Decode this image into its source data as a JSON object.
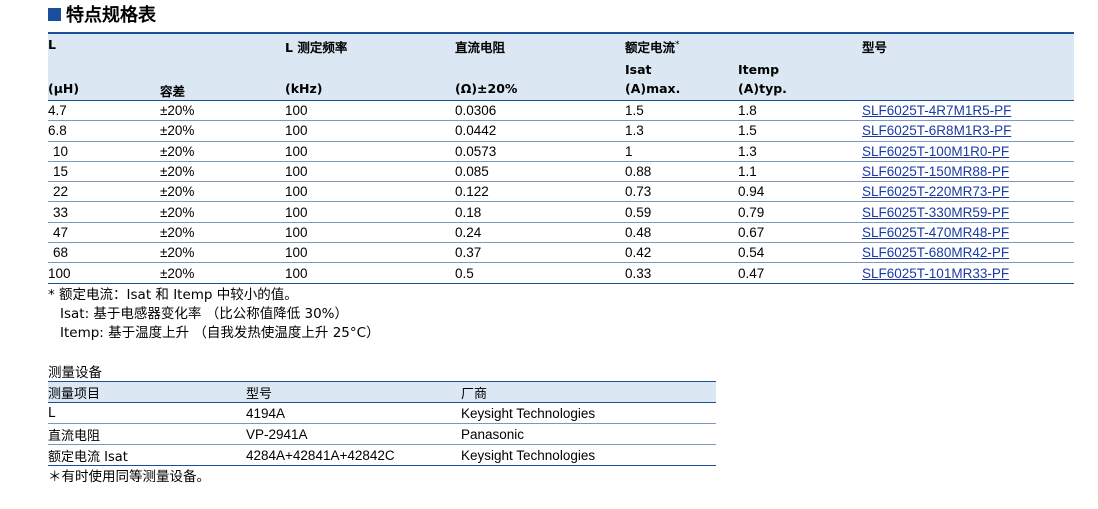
{
  "section_title": "特点规格表",
  "spec_table": {
    "header": {
      "l_top": "L",
      "l_unit": "(μH)",
      "tolerance": "容差",
      "freq": "L 测定频率",
      "freq_unit": "(kHz)",
      "dcr": "直流电阻",
      "dcr_unit": "(Ω)±20%",
      "rated_current": "额定电流",
      "rated_mark": "*",
      "isat": "Isat",
      "isat_unit": "(A)max.",
      "itemp": "Itemp",
      "itemp_unit": "(A)typ.",
      "part_no": "型号"
    },
    "rows": [
      {
        "l": "4.7",
        "tol": "±20%",
        "freq": "100",
        "dcr": "0.0306",
        "isat": "1.5",
        "itemp": "1.8",
        "part": "SLF6025T-4R7M1R5-PF"
      },
      {
        "l": "6.8",
        "tol": "±20%",
        "freq": "100",
        "dcr": "0.0442",
        "isat": "1.3",
        "itemp": "1.5",
        "part": "SLF6025T-6R8M1R3-PF"
      },
      {
        "l": "10",
        "tol": "±20%",
        "freq": "100",
        "dcr": "0.0573",
        "isat": "1",
        "itemp": "1.3",
        "part": "SLF6025T-100M1R0-PF"
      },
      {
        "l": "15",
        "tol": "±20%",
        "freq": "100",
        "dcr": "0.085",
        "isat": "0.88",
        "itemp": "1.1",
        "part": "SLF6025T-150MR88-PF"
      },
      {
        "l": "22",
        "tol": "±20%",
        "freq": "100",
        "dcr": "0.122",
        "isat": "0.73",
        "itemp": "0.94",
        "part": "SLF6025T-220MR73-PF"
      },
      {
        "l": "33",
        "tol": "±20%",
        "freq": "100",
        "dcr": "0.18",
        "isat": "0.59",
        "itemp": "0.79",
        "part": "SLF6025T-330MR59-PF"
      },
      {
        "l": "47",
        "tol": "±20%",
        "freq": "100",
        "dcr": "0.24",
        "isat": "0.48",
        "itemp": "0.67",
        "part": "SLF6025T-470MR48-PF"
      },
      {
        "l": "68",
        "tol": "±20%",
        "freq": "100",
        "dcr": "0.37",
        "isat": "0.42",
        "itemp": "0.54",
        "part": "SLF6025T-680MR42-PF"
      },
      {
        "l": "100",
        "tol": "±20%",
        "freq": "100",
        "dcr": "0.5",
        "isat": "0.33",
        "itemp": "0.47",
        "part": "SLF6025T-101MR33-PF"
      }
    ]
  },
  "notes": [
    "* 额定电流：Isat 和 Itemp 中较小的值。",
    "Isat: 基于电感器变化率 （比公称值降低 30%）",
    "Itemp: 基于温度上升 （自我发热使温度上升 25°C）"
  ],
  "equipment": {
    "title": "测量设备",
    "headers": {
      "item": "测量项目",
      "model": "型号",
      "maker": "厂商"
    },
    "rows": [
      {
        "item": "L",
        "model": "4194A",
        "maker": "Keysight Technologies"
      },
      {
        "item": "直流电阻",
        "model": "VP-2941A",
        "maker": "Panasonic"
      },
      {
        "item": "额定电流 Isat",
        "model": "4284A+42841A+42842C",
        "maker": "Keysight Technologies"
      }
    ]
  },
  "footnote": "＊有时使用同等测量设备。",
  "colors": {
    "header_bg": "#dbe8f4",
    "accent": "#1a4f9c",
    "link": "#1a3aa8"
  }
}
